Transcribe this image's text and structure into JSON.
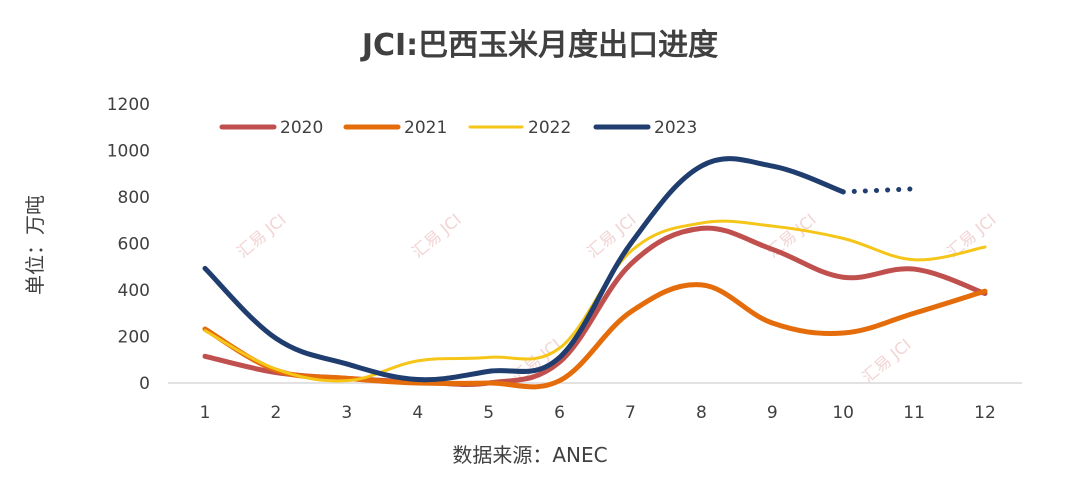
{
  "chart_data": {
    "type": "line",
    "title": "JCI:巴西玉米月度出口进度",
    "xlabel": "数据来源：ANEC",
    "ylabel": "单位：万吨",
    "ylim": [
      0,
      1200
    ],
    "yticks": [
      "0",
      "200",
      "400",
      "600",
      "800",
      "1000",
      "1200"
    ],
    "categories": [
      "1",
      "2",
      "3",
      "4",
      "5",
      "6",
      "7",
      "8",
      "9",
      "10",
      "11",
      "12"
    ],
    "grid": false,
    "legend": "top",
    "watermark": "汇易 JCI",
    "series": [
      {
        "name": "2020",
        "color": "#c0504d",
        "values": [
          115,
          45,
          20,
          5,
          0,
          90,
          510,
          665,
          575,
          455,
          490,
          385
        ]
      },
      {
        "name": "2021",
        "color": "#e46c0a",
        "values": [
          232,
          55,
          20,
          0,
          0,
          10,
          305,
          422,
          258,
          215,
          300,
          395
        ]
      },
      {
        "name": "2022",
        "color": "#f5c518",
        "values": [
          225,
          60,
          10,
          95,
          110,
          150,
          565,
          688,
          675,
          622,
          530,
          585
        ]
      },
      {
        "name": "2023",
        "color": "#1f3d6e",
        "values": [
          493,
          192,
          82,
          15,
          50,
          110,
          598,
          933,
          933,
          822,
          835,
          null
        ],
        "forecast_from_index": 9
      }
    ]
  }
}
